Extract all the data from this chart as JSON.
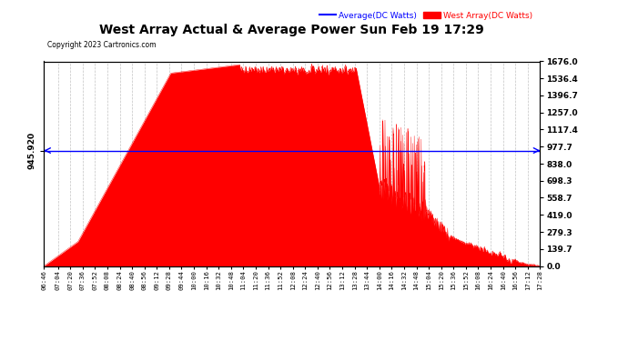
{
  "title": "West Array Actual & Average Power Sun Feb 19 17:29",
  "copyright": "Copyright 2023 Cartronics.com",
  "avg_value": 945.92,
  "y_ticks": [
    0.0,
    139.7,
    279.3,
    419.0,
    558.7,
    698.3,
    838.0,
    977.7,
    1117.4,
    1257.0,
    1396.7,
    1536.4,
    1676.0
  ],
  "y_max": 1676.0,
  "y_min": 0.0,
  "x_tick_labels": [
    "06:46",
    "07:04",
    "07:20",
    "07:36",
    "07:52",
    "08:08",
    "08:24",
    "08:40",
    "08:56",
    "09:12",
    "09:28",
    "09:44",
    "10:00",
    "10:16",
    "10:32",
    "10:48",
    "11:04",
    "11:20",
    "11:36",
    "11:52",
    "12:08",
    "12:24",
    "12:40",
    "12:56",
    "13:12",
    "13:28",
    "13:44",
    "14:00",
    "14:16",
    "14:32",
    "14:48",
    "15:04",
    "15:20",
    "15:36",
    "15:52",
    "16:08",
    "16:24",
    "16:40",
    "16:56",
    "17:12",
    "17:28"
  ],
  "bg_color": "#ffffff",
  "fill_color": "#ff0000",
  "line_color": "#0000ff",
  "grid_color": "#aaaaaa",
  "legend_avg_color": "#0000ff",
  "legend_west_color": "#ff0000"
}
